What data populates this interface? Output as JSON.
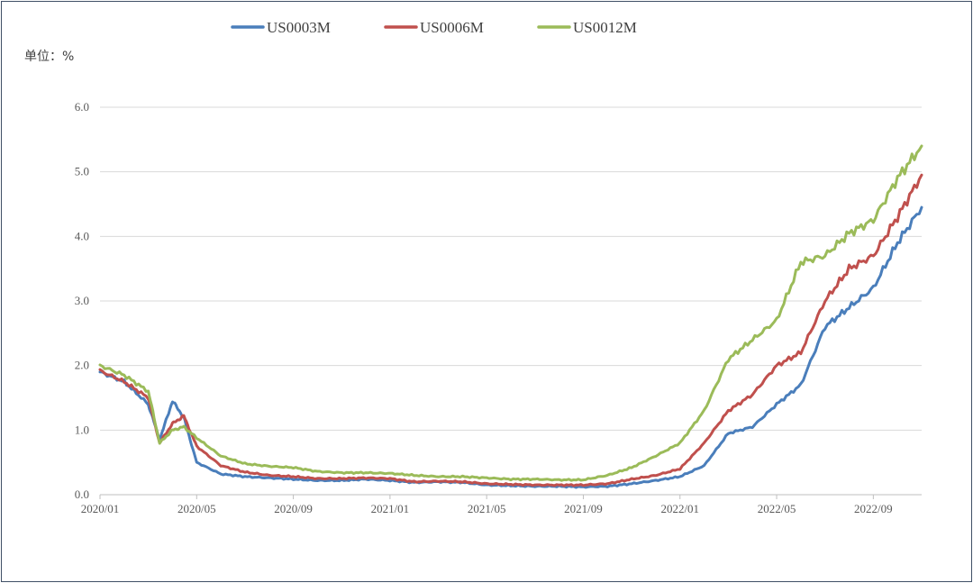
{
  "chart_data": {
    "type": "line",
    "unit_label": "单位：%",
    "x_ticks": [
      "2020/01",
      "2020/05",
      "2020/09",
      "2021/01",
      "2021/05",
      "2021/09",
      "2022/01",
      "2022/05",
      "2022/09"
    ],
    "x_range": [
      "2020-01",
      "2022-11"
    ],
    "ylim": [
      0,
      6
    ],
    "y_ticks": [
      "0.0",
      "1.0",
      "2.0",
      "3.0",
      "4.0",
      "5.0",
      "6.0"
    ],
    "grid": true,
    "legend_position": "top",
    "x": [
      "2020-01",
      "2020-02",
      "2020-03-01",
      "2020-03-15",
      "2020-04-01",
      "2020-04-15",
      "2020-05",
      "2020-06",
      "2020-07",
      "2020-08",
      "2020-09",
      "2020-10",
      "2020-11",
      "2020-12",
      "2021-01",
      "2021-02",
      "2021-03",
      "2021-04",
      "2021-05",
      "2021-06",
      "2021-07",
      "2021-08",
      "2021-09",
      "2021-10",
      "2021-11",
      "2021-12",
      "2022-01",
      "2022-02",
      "2022-03",
      "2022-04",
      "2022-05",
      "2022-06",
      "2022-07",
      "2022-08",
      "2022-09",
      "2022-10",
      "2022-11"
    ],
    "series": [
      {
        "name": "US0003M",
        "color": "#4a7ebb",
        "values": [
          1.9,
          1.75,
          1.4,
          0.85,
          1.45,
          1.2,
          0.5,
          0.32,
          0.28,
          0.26,
          0.24,
          0.22,
          0.22,
          0.24,
          0.22,
          0.19,
          0.2,
          0.19,
          0.15,
          0.14,
          0.13,
          0.13,
          0.12,
          0.13,
          0.17,
          0.22,
          0.28,
          0.45,
          0.95,
          1.05,
          1.4,
          1.7,
          2.6,
          2.9,
          3.2,
          3.9,
          4.45
        ]
      },
      {
        "name": "US0006M",
        "color": "#c0504d",
        "values": [
          1.92,
          1.75,
          1.5,
          0.8,
          1.1,
          1.22,
          0.75,
          0.45,
          0.35,
          0.3,
          0.28,
          0.25,
          0.25,
          0.26,
          0.25,
          0.2,
          0.21,
          0.2,
          0.17,
          0.16,
          0.15,
          0.15,
          0.15,
          0.17,
          0.24,
          0.3,
          0.4,
          0.8,
          1.3,
          1.55,
          2.0,
          2.2,
          3.0,
          3.5,
          3.7,
          4.3,
          4.95
        ]
      },
      {
        "name": "US0012M",
        "color": "#9bbb59",
        "values": [
          2.0,
          1.85,
          1.6,
          0.8,
          1.0,
          1.05,
          0.88,
          0.6,
          0.48,
          0.44,
          0.42,
          0.36,
          0.34,
          0.34,
          0.33,
          0.3,
          0.28,
          0.28,
          0.26,
          0.24,
          0.24,
          0.23,
          0.23,
          0.3,
          0.42,
          0.6,
          0.8,
          1.3,
          2.1,
          2.4,
          2.7,
          3.6,
          3.7,
          4.05,
          4.25,
          4.9,
          5.4
        ]
      }
    ]
  }
}
